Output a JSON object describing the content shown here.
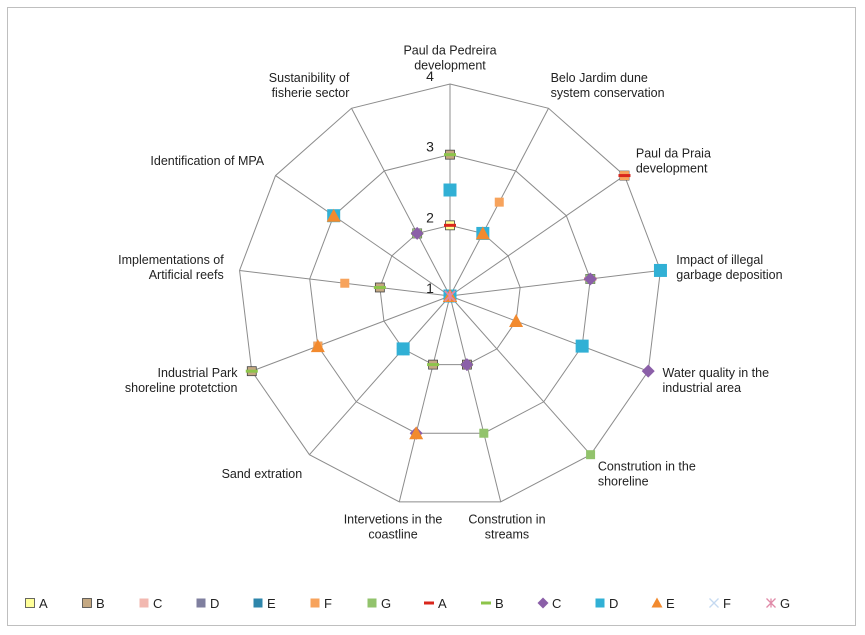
{
  "chart_data": {
    "type": "radar",
    "categories": [
      "Paul da Pedreira development",
      "Belo Jardim dune system conservation",
      "Paul da Praia development",
      "Impact of illegal garbage deposition",
      "Water quality in the industrial area",
      "Constrution in the shoreline",
      "Constrution in streams",
      "Intervetions in the coastline",
      "Sand extration",
      "Industrial Park shoreline protetction",
      "Implementations of Artificial reefs",
      "Identification of MPA",
      "Sustanibility of fisherie sector"
    ],
    "category_lines": [
      [
        "Paul da Pedreira",
        "development"
      ],
      [
        "Belo Jardim dune",
        "system conservation"
      ],
      [
        "Paul da Praia",
        "development"
      ],
      [
        "Impact of illegal",
        "garbage deposition"
      ],
      [
        "Water quality in the",
        "industrial area"
      ],
      [
        "Constrution in the",
        "shoreline"
      ],
      [
        "Constrution in",
        "streams"
      ],
      [
        "Intervetions in the",
        "coastline"
      ],
      [
        "Sand extration"
      ],
      [
        "Industrial Park",
        "shoreline protetction"
      ],
      [
        "Implementations of",
        "Artificial reefs"
      ],
      [
        "Identification of MPA"
      ],
      [
        "Sustanibility of",
        "fisherie sector"
      ]
    ],
    "r_range": [
      1,
      4
    ],
    "ticks": [
      1,
      2,
      3,
      4
    ],
    "grid": true,
    "legend_position": "bottom",
    "series": [
      {
        "name": "A",
        "marker": "square-outline",
        "color": "#ffff99",
        "values": [
          2.0,
          2.0,
          4.0,
          3.0,
          1.0,
          1.0,
          1.0,
          1.0,
          1.0,
          1.0,
          1.0,
          1.0,
          1.0
        ]
      },
      {
        "name": "B",
        "marker": "square-outline",
        "color": "#c4a882",
        "values": [
          3.0,
          1.0,
          1.0,
          1.0,
          1.0,
          1.0,
          2.0,
          2.0,
          1.0,
          4.0,
          2.0,
          1.0,
          2.0
        ]
      },
      {
        "name": "C",
        "marker": "square",
        "color": "#f2b8b0",
        "values": [
          1.0,
          1.0,
          1.0,
          1.0,
          1.0,
          1.0,
          1.0,
          1.0,
          1.0,
          1.0,
          1.0,
          1.0,
          1.0
        ]
      },
      {
        "name": "D",
        "marker": "square",
        "color": "#7f7f9f",
        "values": [
          1.0,
          1.0,
          1.0,
          1.0,
          1.0,
          1.0,
          1.0,
          1.0,
          1.0,
          1.0,
          1.0,
          1.0,
          1.0
        ]
      },
      {
        "name": "E",
        "marker": "square",
        "color": "#2e86ab",
        "values": [
          1.0,
          1.0,
          1.0,
          1.0,
          1.0,
          1.0,
          1.0,
          1.0,
          1.0,
          3.0,
          1.0,
          3.0,
          1.0
        ]
      },
      {
        "name": "F",
        "marker": "square",
        "color": "#f7a35c",
        "values": [
          1.0,
          2.5,
          4.0,
          1.0,
          3.0,
          1.0,
          1.0,
          1.0,
          1.0,
          3.0,
          2.5,
          1.0,
          1.0
        ]
      },
      {
        "name": "G",
        "marker": "square",
        "color": "#92c36c",
        "values": [
          1.0,
          1.0,
          1.0,
          3.0,
          1.0,
          4.0,
          3.0,
          1.0,
          2.0,
          1.0,
          1.0,
          1.0,
          2.0
        ]
      },
      {
        "name": "A",
        "marker": "dash",
        "color": "#d9261c",
        "values": [
          2.0,
          2.0,
          4.0,
          3.0,
          1.0,
          1.0,
          1.0,
          1.0,
          1.0,
          1.0,
          1.0,
          1.0,
          1.0
        ]
      },
      {
        "name": "B",
        "marker": "dash",
        "color": "#8dc44a",
        "values": [
          3.0,
          1.0,
          1.0,
          1.0,
          1.0,
          1.0,
          2.0,
          2.0,
          1.0,
          4.0,
          2.0,
          1.0,
          2.0
        ]
      },
      {
        "name": "C",
        "marker": "diamond",
        "color": "#8b5fa8",
        "values": [
          1.0,
          1.0,
          1.0,
          3.0,
          4.0,
          1.0,
          2.0,
          3.0,
          2.0,
          1.0,
          1.0,
          1.0,
          2.0
        ]
      },
      {
        "name": "D",
        "marker": "square",
        "color": "#31b0d5",
        "values": [
          2.5,
          2.0,
          1.0,
          4.0,
          3.0,
          1.0,
          1.0,
          1.0,
          2.0,
          1.0,
          1.0,
          3.0,
          1.0
        ]
      },
      {
        "name": "E",
        "marker": "triangle",
        "color": "#f28a2e",
        "values": [
          1.0,
          2.0,
          1.0,
          1.0,
          2.0,
          1.0,
          1.0,
          3.0,
          1.0,
          3.0,
          1.0,
          3.0,
          1.0
        ]
      },
      {
        "name": "F",
        "marker": "x",
        "color": "#c5d9f1",
        "values": [
          1.0,
          1.0,
          1.0,
          1.0,
          1.0,
          1.0,
          1.0,
          1.0,
          1.0,
          1.0,
          1.0,
          1.0,
          1.0
        ]
      },
      {
        "name": "G",
        "marker": "star",
        "color": "#e08aa8",
        "values": [
          1.0,
          1.0,
          1.0,
          1.0,
          1.0,
          1.0,
          1.0,
          1.0,
          1.0,
          1.0,
          1.0,
          1.0,
          1.0
        ]
      }
    ]
  }
}
